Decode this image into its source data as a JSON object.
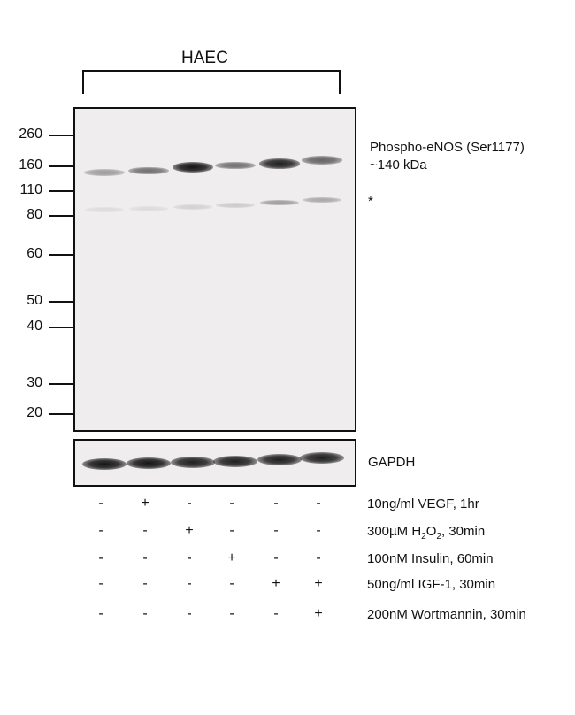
{
  "cell_line": "HAEC",
  "mw_markers": [
    "260",
    "160",
    "110",
    "80",
    "60",
    "50",
    "40",
    "30",
    "20"
  ],
  "target_label_line1": "Phospho-eNOS (Ser1177)",
  "target_label_line2": "~140 kDa",
  "nonspecific_marker": "*",
  "loading_control": "GAPDH",
  "treatments": [
    {
      "label_prefix": "10ng/ml VEGF, 1hr",
      "sub": "",
      "suffix": "",
      "lanes": [
        "-",
        "+",
        "-",
        "-",
        "-",
        "-"
      ]
    },
    {
      "label_prefix": "300µM H",
      "sub": "2",
      "mid": "O",
      "sub2": "2",
      "suffix": ", 30min",
      "lanes": [
        "-",
        "-",
        "+",
        "-",
        "-",
        "-"
      ]
    },
    {
      "label_prefix": "100nM Insulin, 60min",
      "sub": "",
      "suffix": "",
      "lanes": [
        "-",
        "-",
        "-",
        "+",
        "-",
        "-"
      ]
    },
    {
      "label_prefix": "50ng/ml IGF-1, 30min",
      "sub": "",
      "suffix": "",
      "lanes": [
        "-",
        "-",
        "-",
        "-",
        "+",
        "+"
      ]
    },
    {
      "label_prefix": "200nM Wortmannin, 30min",
      "sub": "",
      "suffix": "",
      "lanes": [
        "-",
        "-",
        "-",
        "-",
        "-",
        "+"
      ]
    }
  ],
  "band_intensity": {
    "phospho_enos": [
      0.35,
      0.55,
      0.95,
      0.55,
      0.9,
      0.6
    ],
    "nonspecific": [
      0.08,
      0.08,
      0.12,
      0.15,
      0.35,
      0.3
    ],
    "gapdh": [
      0.95,
      0.95,
      0.9,
      0.9,
      0.9,
      0.9
    ]
  }
}
